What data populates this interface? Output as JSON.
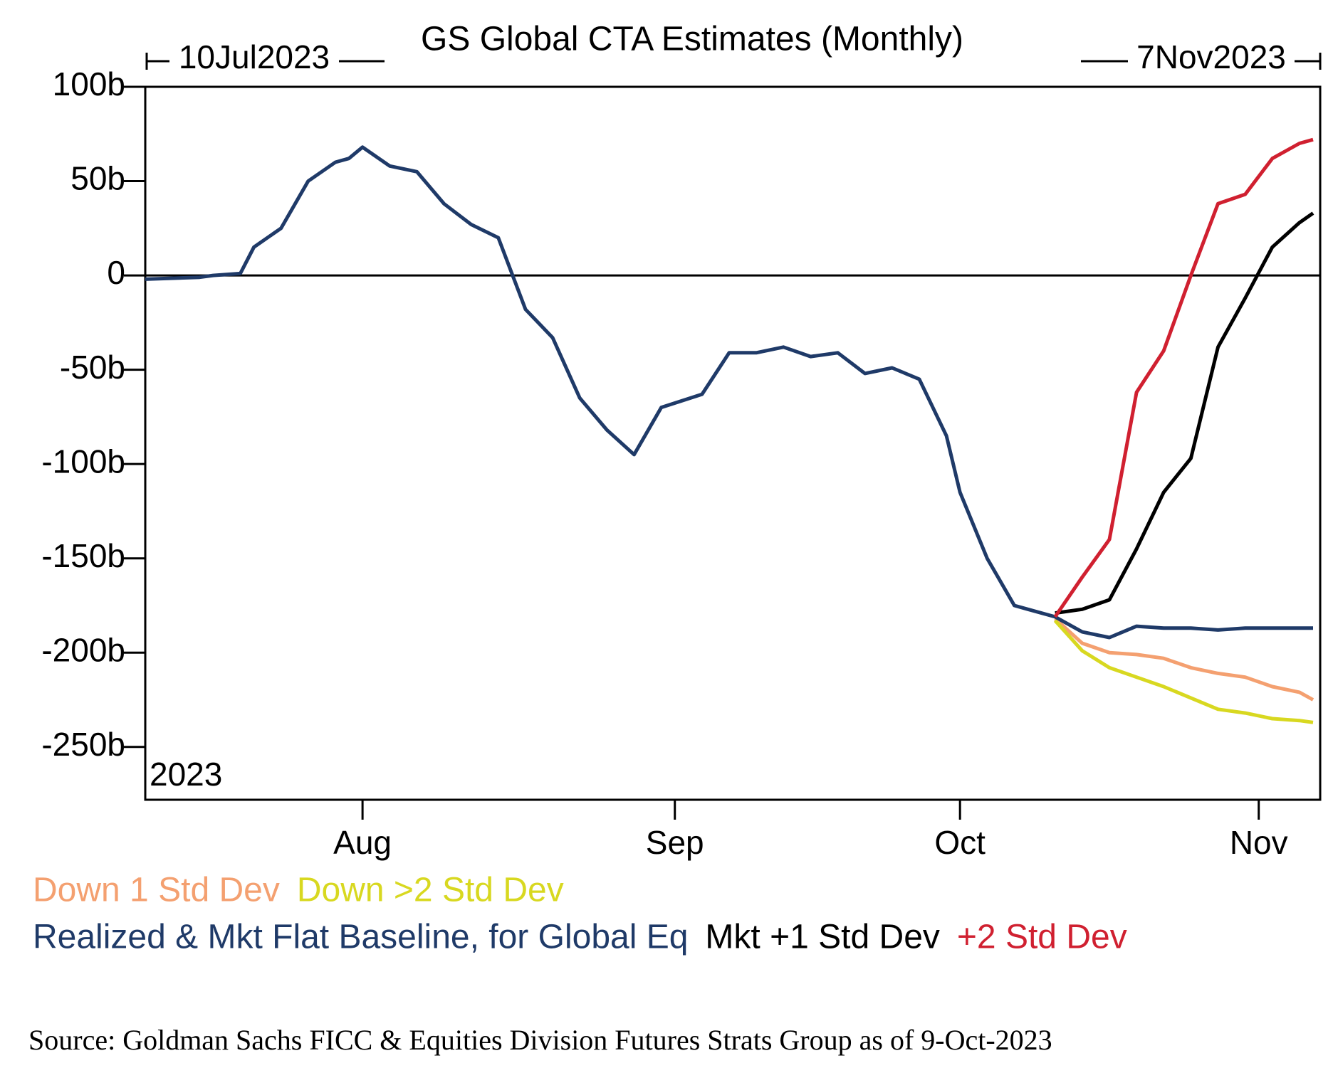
{
  "chart_data": {
    "type": "line",
    "title": "GS Global CTA Estimates (Monthly)",
    "start_label": "10Jul2023",
    "end_label": "7Nov2023",
    "year_label": "2023",
    "source": "Source: Goldman Sachs FICC & Equities Division Futures Strats Group as of 9-Oct-2023",
    "x": [
      "2023-07-10",
      "2023-07-14",
      "2023-07-17",
      "2023-07-19",
      "2023-07-20",
      "2023-07-24",
      "2023-07-26",
      "2023-07-28",
      "2023-07-31",
      "2023-08-01",
      "2023-08-03",
      "2023-08-07",
      "2023-08-09",
      "2023-08-11",
      "2023-08-15",
      "2023-08-17",
      "2023-08-21",
      "2023-08-23",
      "2023-08-25",
      "2023-08-29",
      "2023-08-31",
      "2023-09-05",
      "2023-09-07",
      "2023-09-11",
      "2023-09-13",
      "2023-09-15",
      "2023-09-19",
      "2023-09-21",
      "2023-09-25",
      "2023-09-27",
      "2023-09-29",
      "2023-10-02",
      "2023-10-04",
      "2023-10-06",
      "2023-10-09",
      "2023-10-11",
      "2023-10-13",
      "2023-10-17",
      "2023-10-19",
      "2023-10-23",
      "2023-10-25",
      "2023-10-27",
      "2023-10-31",
      "2023-11-02",
      "2023-11-06",
      "2023-11-07"
    ],
    "xlim": [
      "2023-07-10",
      "2023-11-07"
    ],
    "xticks": [
      {
        "value": "2023-08-01",
        "label": "Aug"
      },
      {
        "value": "2023-09-01",
        "label": "Sep"
      },
      {
        "value": "2023-10-02",
        "label": "Oct"
      },
      {
        "value": "2023-11-01",
        "label": "Nov"
      }
    ],
    "business_day_axis": true,
    "ylim": [
      -278,
      100
    ],
    "yticks": [
      {
        "value": 100,
        "label": "100b"
      },
      {
        "value": 50,
        "label": "50b"
      },
      {
        "value": 0,
        "label": "0"
      },
      {
        "value": -50,
        "label": "-50b"
      },
      {
        "value": -100,
        "label": "-100b"
      },
      {
        "value": -150,
        "label": "-150b"
      },
      {
        "value": -200,
        "label": "-200b"
      },
      {
        "value": -250,
        "label": "-250b"
      }
    ],
    "zero_line": true,
    "series": [
      {
        "name": "Down 1 Std Dev",
        "color": "#f4a070",
        "values": [
          null,
          null,
          null,
          null,
          null,
          null,
          null,
          null,
          null,
          null,
          null,
          null,
          null,
          null,
          null,
          null,
          null,
          null,
          null,
          null,
          null,
          null,
          null,
          null,
          null,
          null,
          null,
          null,
          null,
          null,
          null,
          null,
          null,
          null,
          null,
          -182,
          -195,
          -200,
          -201,
          -203,
          -208,
          -211,
          -213,
          -218,
          -221,
          -225
        ]
      },
      {
        "name": "Down >2 Std Dev",
        "color": "#d8d820",
        "values": [
          null,
          null,
          null,
          null,
          null,
          null,
          null,
          null,
          null,
          null,
          null,
          null,
          null,
          null,
          null,
          null,
          null,
          null,
          null,
          null,
          null,
          null,
          null,
          null,
          null,
          null,
          null,
          null,
          null,
          null,
          null,
          null,
          null,
          null,
          null,
          -183,
          -199,
          -208,
          -213,
          -218,
          -224,
          -230,
          -232,
          -235,
          -236,
          -237
        ]
      },
      {
        "name": "Realized & Mkt Flat Baseline, for Global Eq",
        "color": "#1f3a68",
        "values": [
          -2,
          -1,
          0,
          1,
          15,
          25,
          50,
          60,
          62,
          68,
          58,
          55,
          38,
          27,
          20,
          -18,
          -33,
          -65,
          -82,
          -95,
          -70,
          -63,
          -41,
          -41,
          -38,
          -43,
          -41,
          -52,
          -49,
          -55,
          -85,
          -115,
          -150,
          -175,
          -177,
          -181,
          -189,
          -192,
          -186,
          -187,
          -187,
          -188,
          -187,
          -187,
          -187,
          -187
        ]
      },
      {
        "name": "Mkt +1 Std Dev",
        "color": "#000000",
        "values": [
          null,
          null,
          null,
          null,
          null,
          null,
          null,
          null,
          null,
          null,
          null,
          null,
          null,
          null,
          null,
          null,
          null,
          null,
          null,
          null,
          null,
          null,
          null,
          null,
          null,
          null,
          null,
          null,
          null,
          null,
          null,
          null,
          null,
          null,
          null,
          -179,
          -177,
          -172,
          -145,
          -115,
          -97,
          -38,
          -12,
          15,
          28,
          33
        ]
      },
      {
        "name": "+2 Std Dev",
        "color": "#d02030",
        "values": [
          null,
          null,
          null,
          null,
          null,
          null,
          null,
          null,
          null,
          null,
          null,
          null,
          null,
          null,
          null,
          null,
          null,
          null,
          null,
          null,
          null,
          null,
          null,
          null,
          null,
          null,
          null,
          null,
          null,
          null,
          null,
          null,
          null,
          null,
          null,
          -181,
          -160,
          -140,
          -62,
          -40,
          0,
          38,
          43,
          62,
          70,
          72
        ]
      }
    ]
  }
}
